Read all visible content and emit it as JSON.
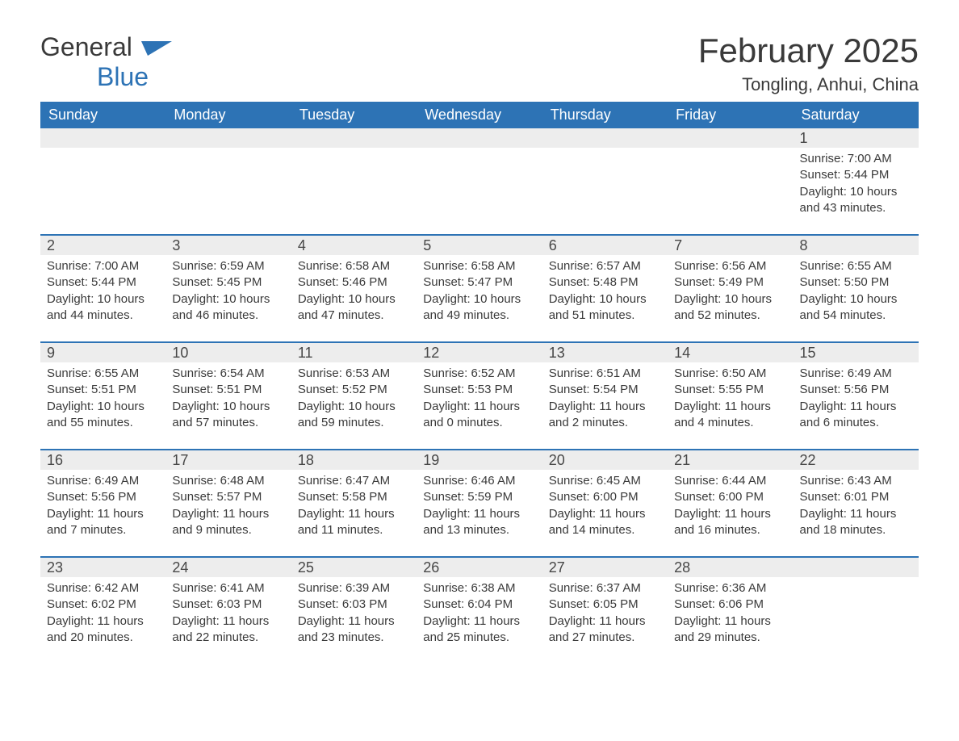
{
  "logo": {
    "word1": "General",
    "word2": "Blue"
  },
  "title": "February 2025",
  "location": "Tongling, Anhui, China",
  "colors": {
    "header_bg": "#2d73b5",
    "header_text": "#ffffff",
    "daynum_bg": "#ededed",
    "text": "#3a3a3a",
    "row_border": "#2d73b5",
    "background": "#ffffff"
  },
  "weekdays": [
    "Sunday",
    "Monday",
    "Tuesday",
    "Wednesday",
    "Thursday",
    "Friday",
    "Saturday"
  ],
  "weeks": [
    [
      {
        "blank": true
      },
      {
        "blank": true
      },
      {
        "blank": true
      },
      {
        "blank": true
      },
      {
        "blank": true
      },
      {
        "blank": true
      },
      {
        "day": "1",
        "sunrise": "Sunrise: 7:00 AM",
        "sunset": "Sunset: 5:44 PM",
        "daylight": "Daylight: 10 hours and 43 minutes."
      }
    ],
    [
      {
        "day": "2",
        "sunrise": "Sunrise: 7:00 AM",
        "sunset": "Sunset: 5:44 PM",
        "daylight": "Daylight: 10 hours and 44 minutes."
      },
      {
        "day": "3",
        "sunrise": "Sunrise: 6:59 AM",
        "sunset": "Sunset: 5:45 PM",
        "daylight": "Daylight: 10 hours and 46 minutes."
      },
      {
        "day": "4",
        "sunrise": "Sunrise: 6:58 AM",
        "sunset": "Sunset: 5:46 PM",
        "daylight": "Daylight: 10 hours and 47 minutes."
      },
      {
        "day": "5",
        "sunrise": "Sunrise: 6:58 AM",
        "sunset": "Sunset: 5:47 PM",
        "daylight": "Daylight: 10 hours and 49 minutes."
      },
      {
        "day": "6",
        "sunrise": "Sunrise: 6:57 AM",
        "sunset": "Sunset: 5:48 PM",
        "daylight": "Daylight: 10 hours and 51 minutes."
      },
      {
        "day": "7",
        "sunrise": "Sunrise: 6:56 AM",
        "sunset": "Sunset: 5:49 PM",
        "daylight": "Daylight: 10 hours and 52 minutes."
      },
      {
        "day": "8",
        "sunrise": "Sunrise: 6:55 AM",
        "sunset": "Sunset: 5:50 PM",
        "daylight": "Daylight: 10 hours and 54 minutes."
      }
    ],
    [
      {
        "day": "9",
        "sunrise": "Sunrise: 6:55 AM",
        "sunset": "Sunset: 5:51 PM",
        "daylight": "Daylight: 10 hours and 55 minutes."
      },
      {
        "day": "10",
        "sunrise": "Sunrise: 6:54 AM",
        "sunset": "Sunset: 5:51 PM",
        "daylight": "Daylight: 10 hours and 57 minutes."
      },
      {
        "day": "11",
        "sunrise": "Sunrise: 6:53 AM",
        "sunset": "Sunset: 5:52 PM",
        "daylight": "Daylight: 10 hours and 59 minutes."
      },
      {
        "day": "12",
        "sunrise": "Sunrise: 6:52 AM",
        "sunset": "Sunset: 5:53 PM",
        "daylight": "Daylight: 11 hours and 0 minutes."
      },
      {
        "day": "13",
        "sunrise": "Sunrise: 6:51 AM",
        "sunset": "Sunset: 5:54 PM",
        "daylight": "Daylight: 11 hours and 2 minutes."
      },
      {
        "day": "14",
        "sunrise": "Sunrise: 6:50 AM",
        "sunset": "Sunset: 5:55 PM",
        "daylight": "Daylight: 11 hours and 4 minutes."
      },
      {
        "day": "15",
        "sunrise": "Sunrise: 6:49 AM",
        "sunset": "Sunset: 5:56 PM",
        "daylight": "Daylight: 11 hours and 6 minutes."
      }
    ],
    [
      {
        "day": "16",
        "sunrise": "Sunrise: 6:49 AM",
        "sunset": "Sunset: 5:56 PM",
        "daylight": "Daylight: 11 hours and 7 minutes."
      },
      {
        "day": "17",
        "sunrise": "Sunrise: 6:48 AM",
        "sunset": "Sunset: 5:57 PM",
        "daylight": "Daylight: 11 hours and 9 minutes."
      },
      {
        "day": "18",
        "sunrise": "Sunrise: 6:47 AM",
        "sunset": "Sunset: 5:58 PM",
        "daylight": "Daylight: 11 hours and 11 minutes."
      },
      {
        "day": "19",
        "sunrise": "Sunrise: 6:46 AM",
        "sunset": "Sunset: 5:59 PM",
        "daylight": "Daylight: 11 hours and 13 minutes."
      },
      {
        "day": "20",
        "sunrise": "Sunrise: 6:45 AM",
        "sunset": "Sunset: 6:00 PM",
        "daylight": "Daylight: 11 hours and 14 minutes."
      },
      {
        "day": "21",
        "sunrise": "Sunrise: 6:44 AM",
        "sunset": "Sunset: 6:00 PM",
        "daylight": "Daylight: 11 hours and 16 minutes."
      },
      {
        "day": "22",
        "sunrise": "Sunrise: 6:43 AM",
        "sunset": "Sunset: 6:01 PM",
        "daylight": "Daylight: 11 hours and 18 minutes."
      }
    ],
    [
      {
        "day": "23",
        "sunrise": "Sunrise: 6:42 AM",
        "sunset": "Sunset: 6:02 PM",
        "daylight": "Daylight: 11 hours and 20 minutes."
      },
      {
        "day": "24",
        "sunrise": "Sunrise: 6:41 AM",
        "sunset": "Sunset: 6:03 PM",
        "daylight": "Daylight: 11 hours and 22 minutes."
      },
      {
        "day": "25",
        "sunrise": "Sunrise: 6:39 AM",
        "sunset": "Sunset: 6:03 PM",
        "daylight": "Daylight: 11 hours and 23 minutes."
      },
      {
        "day": "26",
        "sunrise": "Sunrise: 6:38 AM",
        "sunset": "Sunset: 6:04 PM",
        "daylight": "Daylight: 11 hours and 25 minutes."
      },
      {
        "day": "27",
        "sunrise": "Sunrise: 6:37 AM",
        "sunset": "Sunset: 6:05 PM",
        "daylight": "Daylight: 11 hours and 27 minutes."
      },
      {
        "day": "28",
        "sunrise": "Sunrise: 6:36 AM",
        "sunset": "Sunset: 6:06 PM",
        "daylight": "Daylight: 11 hours and 29 minutes."
      },
      {
        "blank": true
      }
    ]
  ]
}
